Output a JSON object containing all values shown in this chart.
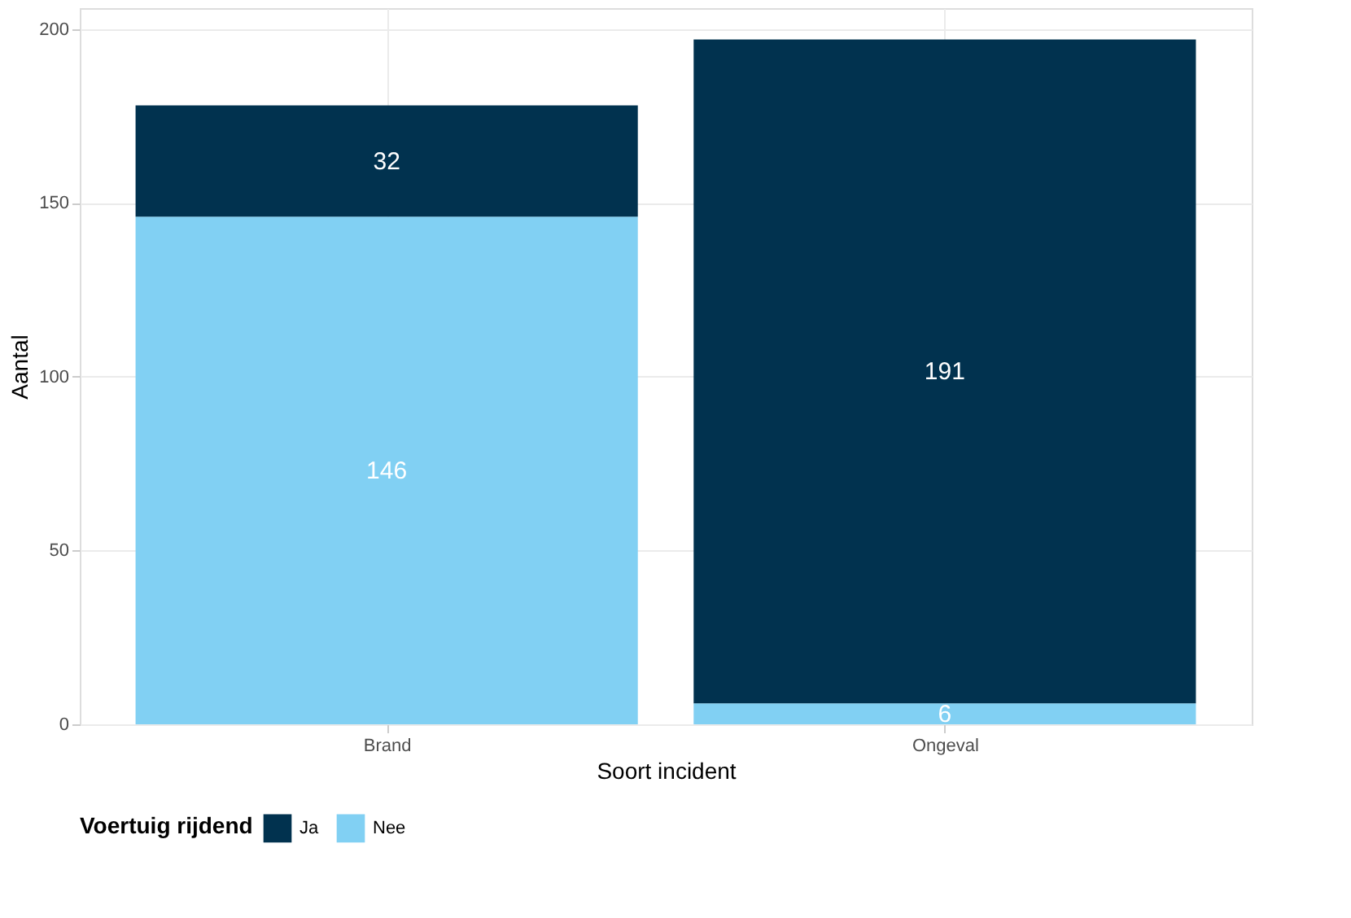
{
  "chart_data": {
    "type": "bar",
    "xlabel": "Soort incident",
    "ylabel": "Aantal",
    "legend_title": "Voertuig rijdend",
    "categories": [
      "Brand",
      "Ongeval"
    ],
    "series": [
      {
        "name": "Nee",
        "color": "#81d0f3",
        "values": [
          146,
          6
        ]
      },
      {
        "name": "Ja",
        "color": "#01324f",
        "values": [
          32,
          191
        ]
      }
    ],
    "stacked": true,
    "data_labels": true,
    "ylim": [
      0,
      206
    ],
    "yticks": [
      0,
      50,
      100,
      150,
      200
    ],
    "grid": true,
    "legend": "bottom"
  }
}
